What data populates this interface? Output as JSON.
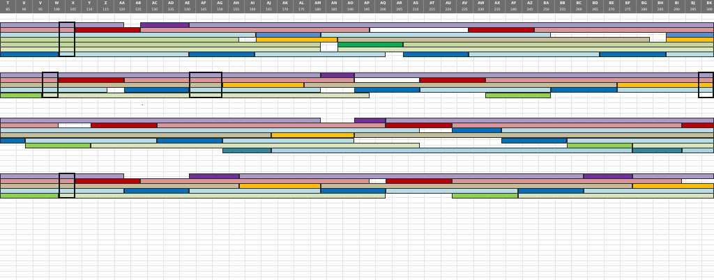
{
  "columns": [
    {
      "letter": "T",
      "number": "85"
    },
    {
      "letter": "U",
      "number": "90"
    },
    {
      "letter": "V",
      "number": "95"
    },
    {
      "letter": "W",
      "number": "100"
    },
    {
      "letter": "X",
      "number": "105"
    },
    {
      "letter": "Y",
      "number": "110"
    },
    {
      "letter": "Z",
      "number": "115"
    },
    {
      "letter": "AA",
      "number": "120"
    },
    {
      "letter": "AB",
      "number": "125"
    },
    {
      "letter": "AC",
      "number": "130"
    },
    {
      "letter": "AD",
      "number": "135"
    },
    {
      "letter": "AE",
      "number": "140"
    },
    {
      "letter": "AF",
      "number": "145"
    },
    {
      "letter": "AG",
      "number": "150"
    },
    {
      "letter": "AH",
      "number": "155"
    },
    {
      "letter": "AI",
      "number": "160"
    },
    {
      "letter": "AJ",
      "number": "165"
    },
    {
      "letter": "AK",
      "number": "170"
    },
    {
      "letter": "AL",
      "number": "175"
    },
    {
      "letter": "AM",
      "number": "180"
    },
    {
      "letter": "AN",
      "number": "185"
    },
    {
      "letter": "AO",
      "number": "190"
    },
    {
      "letter": "AP",
      "number": "195"
    },
    {
      "letter": "AQ",
      "number": "200"
    },
    {
      "letter": "AR",
      "number": "205"
    },
    {
      "letter": "AS",
      "number": "210"
    },
    {
      "letter": "AT",
      "number": "215"
    },
    {
      "letter": "AU",
      "number": "220"
    },
    {
      "letter": "AV",
      "number": "225"
    },
    {
      "letter": "AW",
      "number": "230"
    },
    {
      "letter": "AX",
      "number": "235"
    },
    {
      "letter": "AY",
      "number": "240"
    },
    {
      "letter": "AZ",
      "number": "245"
    },
    {
      "letter": "BA",
      "number": "250"
    },
    {
      "letter": "BB",
      "number": "255"
    },
    {
      "letter": "BC",
      "number": "260"
    },
    {
      "letter": "BD",
      "number": "265"
    },
    {
      "letter": "BE",
      "number": "270"
    },
    {
      "letter": "BF",
      "number": "275"
    },
    {
      "letter": "BG",
      "number": "280"
    },
    {
      "letter": "BH",
      "number": "285"
    },
    {
      "letter": "BI",
      "number": "290"
    },
    {
      "letter": "BJ",
      "number": "295"
    },
    {
      "letter": "BK",
      "number": "300"
    }
  ],
  "colors": {
    "lavender": "#a99bc9",
    "purple": "#7030a0",
    "rose": "#d99694",
    "red": "#c00000",
    "lightblue": "#b7dde8",
    "blue": "#0070c0",
    "sage": "#c4d79b",
    "khaki": "#c4bd97",
    "lightsage": "#d8e4bc",
    "gold": "#ffc000",
    "green": "#00b050",
    "lime": "#92d050",
    "teal": "#31859c",
    "skyblue": "#a5d5e2",
    "steelblue": "#558ed5",
    "white": "#ffffff",
    "grid": "#e4e4e4",
    "header_bg": "#6d6d6d"
  }
}
